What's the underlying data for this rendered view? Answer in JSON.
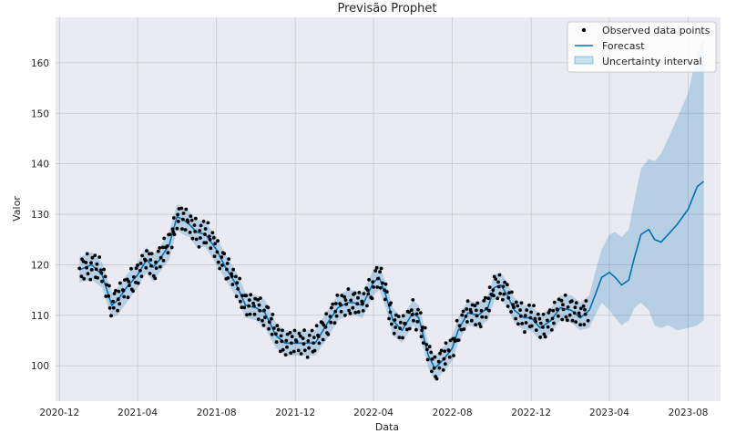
{
  "chart_data": {
    "type": "line",
    "title": "Previsão Prophet",
    "xlabel": "Data",
    "ylabel": "Valor",
    "x_range": [
      "2020-11-25",
      "2023-09-20"
    ],
    "ylim": [
      93,
      169
    ],
    "x_ticks": [
      {
        "date": "2020-12-01",
        "label": "2020-12"
      },
      {
        "date": "2021-04-01",
        "label": "2021-04"
      },
      {
        "date": "2021-08-01",
        "label": "2021-08"
      },
      {
        "date": "2021-12-01",
        "label": "2021-12"
      },
      {
        "date": "2022-04-01",
        "label": "2022-04"
      },
      {
        "date": "2022-08-01",
        "label": "2022-08"
      },
      {
        "date": "2022-12-01",
        "label": "2022-12"
      },
      {
        "date": "2023-04-01",
        "label": "2023-04"
      },
      {
        "date": "2023-08-01",
        "label": "2023-08"
      }
    ],
    "y_ticks": [
      100,
      110,
      120,
      130,
      140,
      150,
      160
    ],
    "grid": true,
    "legend_position": "top-right",
    "colors": {
      "observed": "#000000",
      "forecast": "#0072B2",
      "interval": "#0072B2",
      "plot_bg": "#EAEAF2",
      "grid": "#C8C8CE"
    },
    "series": [
      {
        "name": "Forecast",
        "kind": "line",
        "points": [
          [
            "2021-01-01",
            119.0
          ],
          [
            "2021-01-20",
            120.0
          ],
          [
            "2021-02-05",
            118.0
          ],
          [
            "2021-02-20",
            112.0
          ],
          [
            "2021-03-01",
            113.0
          ],
          [
            "2021-03-15",
            115.5
          ],
          [
            "2021-04-01",
            118.0
          ],
          [
            "2021-04-15",
            121.0
          ],
          [
            "2021-04-25",
            119.5
          ],
          [
            "2021-05-05",
            121.0
          ],
          [
            "2021-05-20",
            124.0
          ],
          [
            "2021-06-01",
            129.5
          ],
          [
            "2021-06-10",
            129.0
          ],
          [
            "2021-06-20",
            128.0
          ],
          [
            "2021-07-01",
            126.5
          ],
          [
            "2021-07-15",
            126.0
          ],
          [
            "2021-08-01",
            123.0
          ],
          [
            "2021-08-15",
            119.5
          ],
          [
            "2021-09-01",
            116.0
          ],
          [
            "2021-09-15",
            112.0
          ],
          [
            "2021-10-01",
            111.5
          ],
          [
            "2021-10-15",
            110.5
          ],
          [
            "2021-11-01",
            106.0
          ],
          [
            "2021-11-15",
            104.5
          ],
          [
            "2021-12-01",
            104.5
          ],
          [
            "2021-12-15",
            104.5
          ],
          [
            "2022-01-01",
            104.5
          ],
          [
            "2022-01-20",
            108.5
          ],
          [
            "2022-02-05",
            111.5
          ],
          [
            "2022-02-20",
            112.5
          ],
          [
            "2022-03-01",
            112.5
          ],
          [
            "2022-03-15",
            112.0
          ],
          [
            "2022-04-01",
            116.5
          ],
          [
            "2022-04-10",
            117.5
          ],
          [
            "2022-04-20",
            114.0
          ],
          [
            "2022-05-01",
            109.0
          ],
          [
            "2022-05-15",
            107.0
          ],
          [
            "2022-06-01",
            110.5
          ],
          [
            "2022-06-10",
            109.5
          ],
          [
            "2022-06-25",
            102.0
          ],
          [
            "2022-07-05",
            99.5
          ],
          [
            "2022-07-20",
            101.5
          ],
          [
            "2022-08-01",
            103.5
          ],
          [
            "2022-08-10",
            107.0
          ],
          [
            "2022-08-25",
            110.5
          ],
          [
            "2022-09-10",
            110.0
          ],
          [
            "2022-09-25",
            111.5
          ],
          [
            "2022-10-05",
            115.5
          ],
          [
            "2022-10-15",
            116.0
          ],
          [
            "2022-10-25",
            114.0
          ],
          [
            "2022-11-05",
            111.0
          ],
          [
            "2022-11-20",
            109.5
          ],
          [
            "2022-12-01",
            109.5
          ],
          [
            "2022-12-15",
            107.5
          ],
          [
            "2023-01-01",
            109.0
          ],
          [
            "2023-01-15",
            111.5
          ],
          [
            "2023-02-01",
            111.0
          ],
          [
            "2023-02-15",
            109.5
          ],
          [
            "2023-03-01",
            111.0
          ],
          [
            "2023-03-10",
            114.0
          ],
          [
            "2023-03-20",
            117.5
          ],
          [
            "2023-04-01",
            118.5
          ],
          [
            "2023-04-10",
            117.5
          ],
          [
            "2023-04-20",
            116.0
          ],
          [
            "2023-05-01",
            117.0
          ],
          [
            "2023-05-10",
            121.5
          ],
          [
            "2023-05-20",
            126.0
          ],
          [
            "2023-06-01",
            127.0
          ],
          [
            "2023-06-10",
            125.0
          ],
          [
            "2023-06-20",
            124.5
          ],
          [
            "2023-07-01",
            126.0
          ],
          [
            "2023-07-15",
            128.0
          ],
          [
            "2023-08-01",
            131.0
          ],
          [
            "2023-08-15",
            135.5
          ],
          [
            "2023-08-25",
            136.5
          ]
        ]
      },
      {
        "name": "Uncertainty interval",
        "kind": "band",
        "lower": [
          [
            "2021-01-01",
            116.5
          ],
          [
            "2021-01-20",
            117.0
          ],
          [
            "2021-02-05",
            115.5
          ],
          [
            "2021-02-20",
            109.5
          ],
          [
            "2021-03-01",
            110.0
          ],
          [
            "2021-03-15",
            112.5
          ],
          [
            "2021-04-01",
            115.5
          ],
          [
            "2021-04-15",
            118.5
          ],
          [
            "2021-04-25",
            116.5
          ],
          [
            "2021-05-05",
            118.5
          ],
          [
            "2021-05-20",
            121.0
          ],
          [
            "2021-06-01",
            127.0
          ],
          [
            "2021-06-10",
            126.0
          ],
          [
            "2021-06-20",
            125.5
          ],
          [
            "2021-07-01",
            123.5
          ],
          [
            "2021-07-15",
            123.5
          ],
          [
            "2021-08-01",
            120.0
          ],
          [
            "2021-08-15",
            117.0
          ],
          [
            "2021-09-01",
            113.5
          ],
          [
            "2021-09-15",
            109.5
          ],
          [
            "2021-10-01",
            109.0
          ],
          [
            "2021-10-15",
            107.5
          ],
          [
            "2021-11-01",
            103.5
          ],
          [
            "2021-11-15",
            102.0
          ],
          [
            "2021-12-01",
            102.0
          ],
          [
            "2021-12-15",
            102.0
          ],
          [
            "2022-01-01",
            102.0
          ],
          [
            "2022-01-20",
            105.5
          ],
          [
            "2022-02-05",
            109.0
          ],
          [
            "2022-02-20",
            110.0
          ],
          [
            "2022-03-01",
            110.0
          ],
          [
            "2022-03-15",
            109.5
          ],
          [
            "2022-04-01",
            114.0
          ],
          [
            "2022-04-10",
            115.0
          ],
          [
            "2022-04-20",
            111.5
          ],
          [
            "2022-05-01",
            106.0
          ],
          [
            "2022-05-15",
            104.5
          ],
          [
            "2022-06-01",
            108.0
          ],
          [
            "2022-06-10",
            107.0
          ],
          [
            "2022-06-25",
            99.5
          ],
          [
            "2022-07-05",
            97.0
          ],
          [
            "2022-07-20",
            99.0
          ],
          [
            "2022-08-01",
            101.0
          ],
          [
            "2022-08-10",
            104.5
          ],
          [
            "2022-08-25",
            108.0
          ],
          [
            "2022-09-10",
            107.5
          ],
          [
            "2022-09-25",
            109.0
          ],
          [
            "2022-10-05",
            113.0
          ],
          [
            "2022-10-15",
            113.5
          ],
          [
            "2022-10-25",
            111.5
          ],
          [
            "2022-11-05",
            108.5
          ],
          [
            "2022-11-20",
            107.0
          ],
          [
            "2022-12-01",
            107.0
          ],
          [
            "2022-12-15",
            105.0
          ],
          [
            "2023-01-01",
            106.5
          ],
          [
            "2023-01-15",
            109.0
          ],
          [
            "2023-02-01",
            108.5
          ],
          [
            "2023-02-15",
            107.0
          ],
          [
            "2023-03-01",
            107.5
          ],
          [
            "2023-03-10",
            110.0
          ],
          [
            "2023-03-20",
            112.5
          ],
          [
            "2023-04-01",
            111.0
          ],
          [
            "2023-04-10",
            109.5
          ],
          [
            "2023-04-20",
            108.0
          ],
          [
            "2023-05-01",
            109.0
          ],
          [
            "2023-05-10",
            111.5
          ],
          [
            "2023-05-20",
            112.5
          ],
          [
            "2023-06-01",
            111.0
          ],
          [
            "2023-06-10",
            108.0
          ],
          [
            "2023-06-20",
            107.5
          ],
          [
            "2023-07-01",
            108.0
          ],
          [
            "2023-07-15",
            107.0
          ],
          [
            "2023-08-01",
            107.5
          ],
          [
            "2023-08-15",
            108.0
          ],
          [
            "2023-08-25",
            109.0
          ]
        ],
        "upper": [
          [
            "2021-01-01",
            121.5
          ],
          [
            "2021-01-20",
            122.5
          ],
          [
            "2021-02-05",
            120.5
          ],
          [
            "2021-02-20",
            114.5
          ],
          [
            "2021-03-01",
            115.5
          ],
          [
            "2021-03-15",
            118.0
          ],
          [
            "2021-04-01",
            120.5
          ],
          [
            "2021-04-15",
            123.5
          ],
          [
            "2021-04-25",
            122.0
          ],
          [
            "2021-05-05",
            123.5
          ],
          [
            "2021-05-20",
            126.5
          ],
          [
            "2021-06-01",
            132.0
          ],
          [
            "2021-06-10",
            131.5
          ],
          [
            "2021-06-20",
            130.5
          ],
          [
            "2021-07-01",
            129.0
          ],
          [
            "2021-07-15",
            128.5
          ],
          [
            "2021-08-01",
            125.5
          ],
          [
            "2021-08-15",
            122.0
          ],
          [
            "2021-09-01",
            118.5
          ],
          [
            "2021-09-15",
            114.5
          ],
          [
            "2021-10-01",
            114.0
          ],
          [
            "2021-10-15",
            113.0
          ],
          [
            "2021-11-01",
            108.5
          ],
          [
            "2021-11-15",
            107.0
          ],
          [
            "2021-12-01",
            107.0
          ],
          [
            "2021-12-15",
            107.0
          ],
          [
            "2022-01-01",
            107.0
          ],
          [
            "2022-01-20",
            111.0
          ],
          [
            "2022-02-05",
            114.0
          ],
          [
            "2022-02-20",
            115.0
          ],
          [
            "2022-03-01",
            115.0
          ],
          [
            "2022-03-15",
            114.5
          ],
          [
            "2022-04-01",
            119.0
          ],
          [
            "2022-04-10",
            120.0
          ],
          [
            "2022-04-20",
            116.5
          ],
          [
            "2022-05-01",
            111.5
          ],
          [
            "2022-05-15",
            109.5
          ],
          [
            "2022-06-01",
            113.0
          ],
          [
            "2022-06-10",
            112.0
          ],
          [
            "2022-06-25",
            104.5
          ],
          [
            "2022-07-05",
            102.0
          ],
          [
            "2022-07-20",
            104.0
          ],
          [
            "2022-08-01",
            106.0
          ],
          [
            "2022-08-10",
            109.5
          ],
          [
            "2022-08-25",
            113.0
          ],
          [
            "2022-09-10",
            112.5
          ],
          [
            "2022-09-25",
            114.0
          ],
          [
            "2022-10-05",
            118.0
          ],
          [
            "2022-10-15",
            118.5
          ],
          [
            "2022-10-25",
            116.5
          ],
          [
            "2022-11-05",
            113.5
          ],
          [
            "2022-11-20",
            112.0
          ],
          [
            "2022-12-01",
            112.0
          ],
          [
            "2022-12-15",
            110.0
          ],
          [
            "2023-01-01",
            111.5
          ],
          [
            "2023-01-15",
            114.0
          ],
          [
            "2023-02-01",
            114.0
          ],
          [
            "2023-02-15",
            112.5
          ],
          [
            "2023-03-01",
            114.0
          ],
          [
            "2023-03-10",
            118.5
          ],
          [
            "2023-03-20",
            123.0
          ],
          [
            "2023-04-01",
            126.0
          ],
          [
            "2023-04-10",
            126.5
          ],
          [
            "2023-04-20",
            125.5
          ],
          [
            "2023-05-01",
            127.0
          ],
          [
            "2023-05-10",
            133.0
          ],
          [
            "2023-05-20",
            139.0
          ],
          [
            "2023-06-01",
            141.0
          ],
          [
            "2023-06-10",
            140.5
          ],
          [
            "2023-06-20",
            142.0
          ],
          [
            "2023-07-01",
            145.0
          ],
          [
            "2023-07-15",
            149.0
          ],
          [
            "2023-08-01",
            154.0
          ],
          [
            "2023-08-15",
            162.0
          ],
          [
            "2023-08-25",
            165.0
          ]
        ]
      },
      {
        "name": "Observed data points",
        "kind": "scatter",
        "x_start": "2021-01-01",
        "x_end": "2023-02-28",
        "noise": [
          [
            0.3,
            0.12
          ],
          [
            -1.4,
            0.81
          ],
          [
            2.2,
            0.63
          ],
          [
            -0.6,
            0.95
          ],
          [
            1.7,
            0.36
          ],
          [
            -2.3,
            0.58
          ],
          [
            0.9,
            0.07
          ],
          [
            -0.2,
            0.49
          ],
          [
            2.6,
            0.71
          ],
          [
            -1.8,
            0.24
          ],
          [
            1.1,
            0.88
          ],
          [
            -2.7,
            0.42
          ],
          [
            0.5,
            0.66
          ],
          [
            -1.0,
            0.18
          ],
          [
            1.9,
            0.54
          ],
          [
            -0.4,
            0.97
          ],
          [
            2.4,
            0.31
          ],
          [
            -2.0,
            0.77
          ],
          [
            0.0,
            0.09
          ],
          [
            1.4,
            0.45
          ],
          [
            -1.6,
            0.69
          ],
          [
            2.9,
            0.22
          ],
          [
            -0.8,
            0.85
          ],
          [
            0.7,
            0.38
          ]
        ]
      }
    ]
  }
}
